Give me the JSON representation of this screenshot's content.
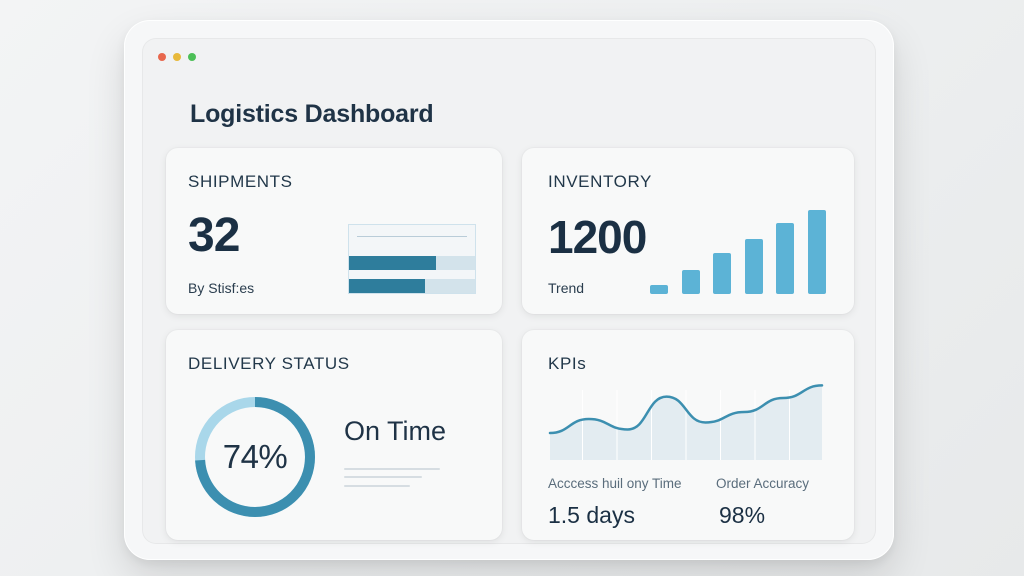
{
  "window": {
    "title": "Logistics Dashboard",
    "traffic_lights": [
      "#e8674d",
      "#e8b93b",
      "#4cbf57"
    ]
  },
  "colors": {
    "accent": "#2e7d9c",
    "accent_light": "#5cb3d6",
    "text": "#1f3346"
  },
  "shipments": {
    "title": "SHIPMENTS",
    "value": "32",
    "label": "By Stisf:es",
    "bars": [
      {
        "name": "bar-1",
        "fill": 0.69
      },
      {
        "name": "bar-2",
        "fill": 0.6
      }
    ]
  },
  "inventory": {
    "title": "INVENTORY",
    "value": "1200",
    "label": "Trend",
    "bars": [
      0.11,
      0.29,
      0.49,
      0.66,
      0.84,
      1.0
    ]
  },
  "delivery": {
    "title": "DELIVERY STATUS",
    "percent_label": "74%",
    "percent": 0.74,
    "status": "On Time"
  },
  "kpis": {
    "title": "KPIs",
    "chart_values": [
      0.3,
      0.5,
      0.35,
      0.82,
      0.45,
      0.6,
      0.8,
      0.98
    ],
    "metrics": [
      {
        "label": "Acccess huil ony Time",
        "value": "1.5 days"
      },
      {
        "label": "Order Accuracy",
        "value": "98%"
      }
    ]
  }
}
